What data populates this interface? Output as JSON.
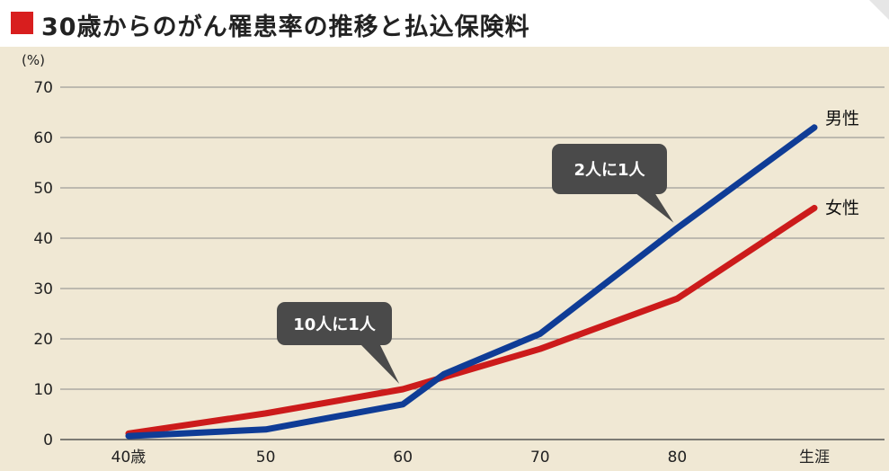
{
  "title": "30歳からのがん罹患率の推移と払込保険料",
  "chart_data": {
    "type": "line",
    "unit_label": "(%)",
    "categories": [
      "40歳",
      "50",
      "60",
      "70",
      "80",
      "生涯"
    ],
    "yticks": [
      0,
      10,
      20,
      30,
      40,
      50,
      60,
      70
    ],
    "ylim": [
      0,
      70
    ],
    "grid": true,
    "series": [
      {
        "name": "男性",
        "color": "#0f3c96",
        "points": [
          [
            0,
            0.7
          ],
          [
            1,
            2
          ],
          [
            2,
            7
          ],
          [
            2.3,
            13
          ],
          [
            3,
            21
          ],
          [
            4,
            42
          ],
          [
            5,
            62
          ]
        ]
      },
      {
        "name": "女性",
        "color": "#cc1b1b",
        "points": [
          [
            0,
            1.2
          ],
          [
            1,
            5.2
          ],
          [
            2,
            10
          ],
          [
            3,
            18
          ],
          [
            4,
            28
          ],
          [
            5,
            46
          ]
        ]
      }
    ],
    "annotations": [
      {
        "text": "10人に1人",
        "points_to": [
          2,
          10
        ]
      },
      {
        "text": "2人に1人",
        "points_to": [
          4,
          42
        ]
      }
    ]
  }
}
